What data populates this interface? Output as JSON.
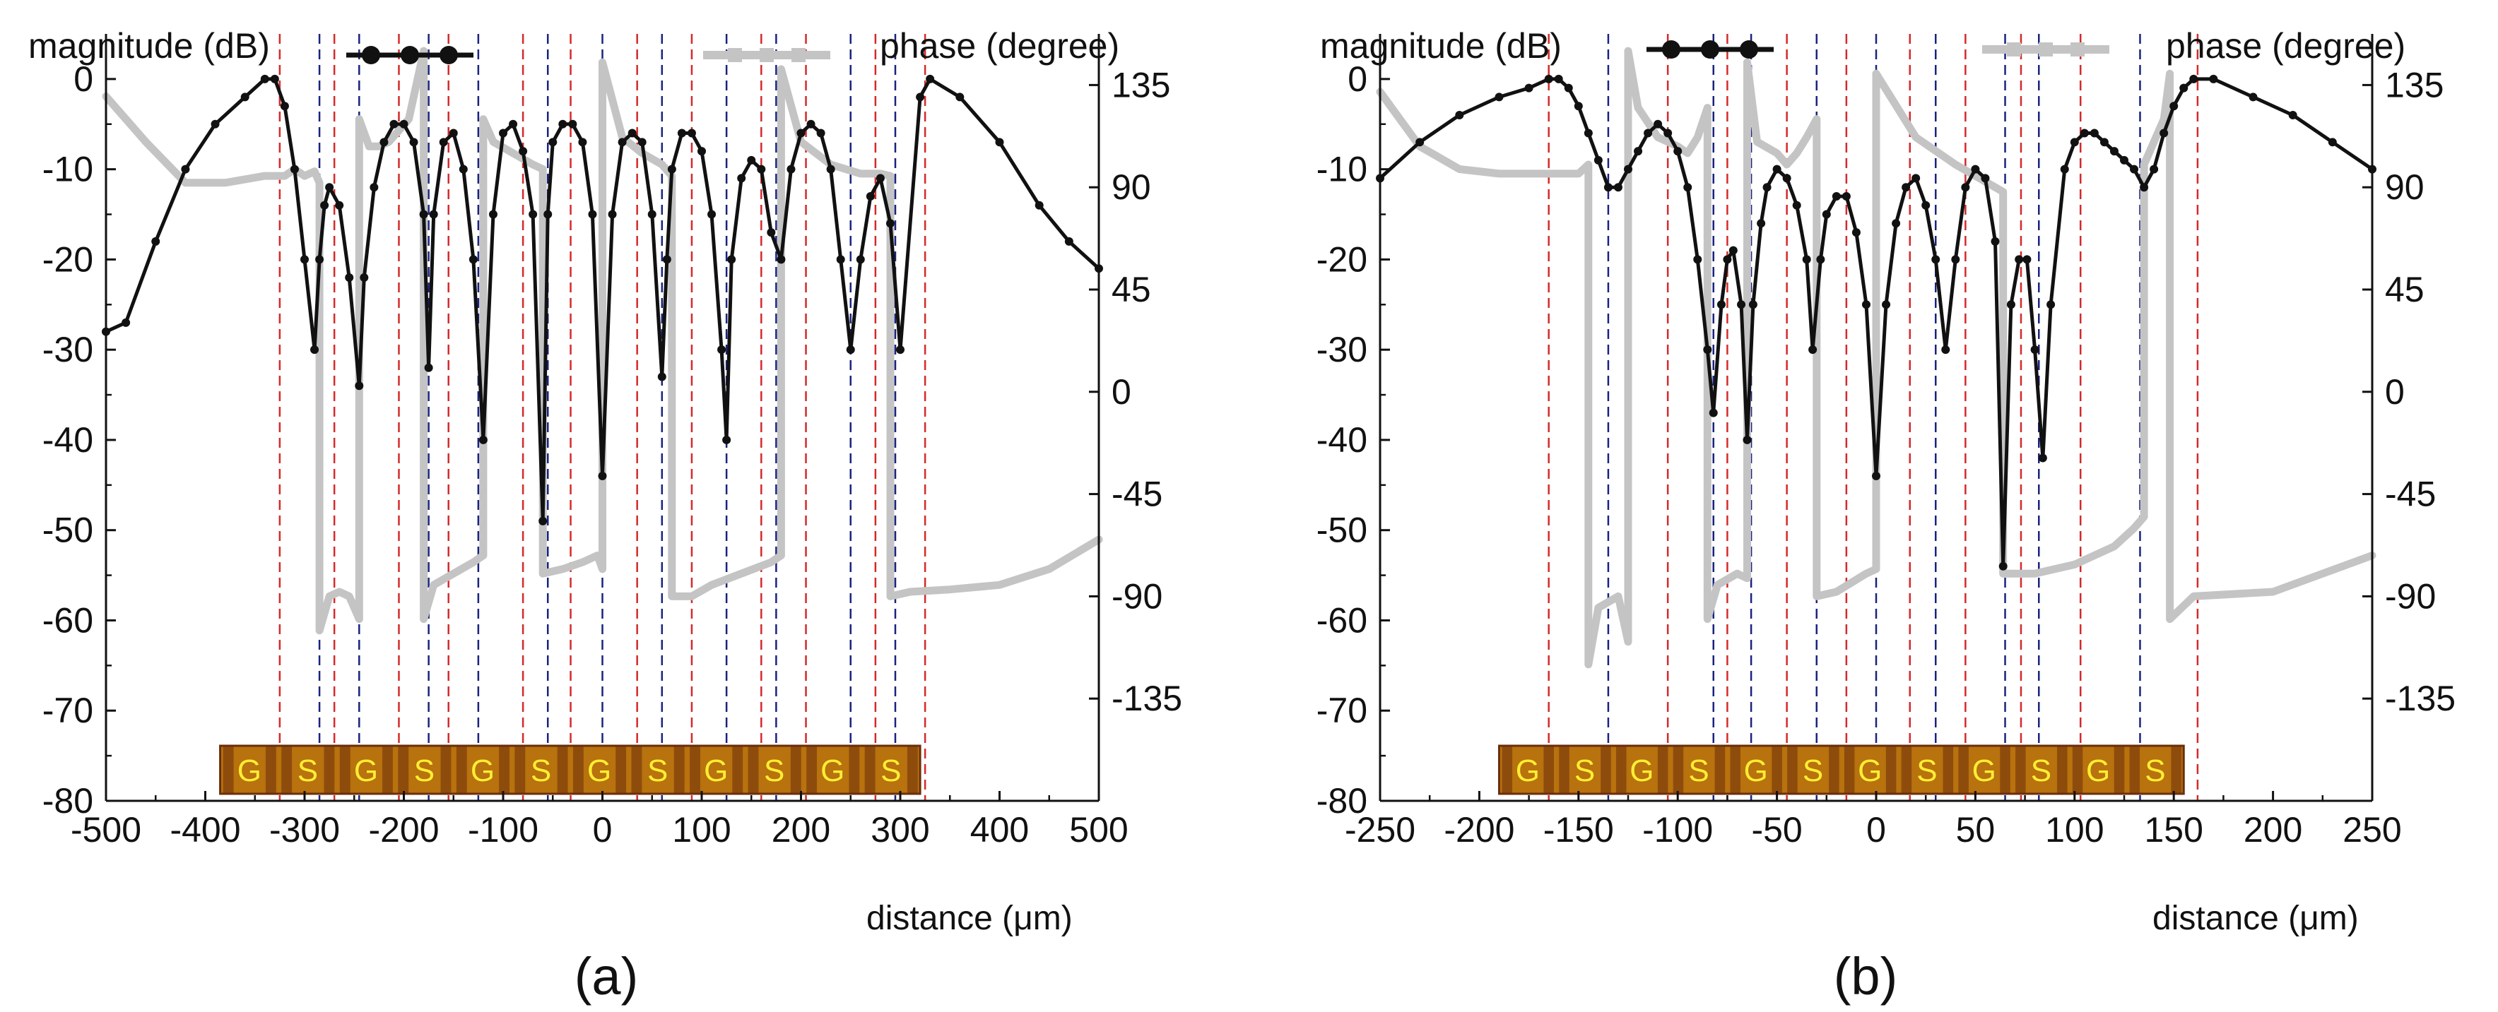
{
  "figure": {
    "background": "#ffffff"
  },
  "colors": {
    "magnitude": "#111111",
    "phase": "#c4c4c4",
    "red_line": "#d42a2a",
    "blue_line": "#1a237e",
    "electrode_base": "#b8720e",
    "electrode_dark": "#6b2e0b",
    "electrode_text": "#ffee33"
  },
  "chart_data": [
    {
      "type": "line",
      "panel_label": "(a)",
      "ylabel_left": "magnitude (dB)",
      "ylabel_right": "phase (degree)",
      "xlabel": "distance (μm)",
      "xlim": [
        -500,
        500
      ],
      "ylim_left": [
        -80,
        5
      ],
      "ylim_right": [
        -180,
        157.5
      ],
      "xticks": [
        -500,
        -400,
        -300,
        -200,
        -100,
        0,
        100,
        200,
        300,
        400,
        500
      ],
      "xtick_labels": [
        "-500",
        "-400",
        "-300",
        "-200",
        "-100",
        "0",
        "100",
        "200",
        "300",
        "400",
        "500"
      ],
      "yticks_left": [
        0,
        -10,
        -20,
        -30,
        -40,
        -50,
        -60,
        -70,
        -80
      ],
      "ytick_labels_left": [
        "0",
        "-10",
        "-20",
        "-30",
        "-40",
        "-50",
        "-60",
        "-70",
        "-80"
      ],
      "yticks_right": [
        135,
        90,
        45,
        0,
        -45,
        -90,
        -135
      ],
      "ytick_labels_right": [
        "135",
        "90",
        "45",
        "0",
        "-45",
        "-90",
        "-135"
      ],
      "legend": [
        {
          "label": "magnitude (dB)",
          "series": "magnitude"
        },
        {
          "label": "phase (degree)",
          "series": "phase"
        }
      ],
      "series": [
        {
          "name": "magnitude",
          "x": [
            -500,
            -480,
            -450,
            -420,
            -390,
            -360,
            -340,
            -330,
            -320,
            -310,
            -300,
            -290,
            -285,
            -280,
            -275,
            -265,
            -255,
            -245,
            -240,
            -230,
            -220,
            -210,
            -200,
            -190,
            -180,
            -175,
            -170,
            -160,
            -150,
            -140,
            -130,
            -120,
            -110,
            -100,
            -90,
            -80,
            -70,
            -60,
            -55,
            -50,
            -40,
            -30,
            -20,
            -10,
            0,
            10,
            20,
            30,
            40,
            50,
            60,
            65,
            70,
            80,
            90,
            100,
            110,
            120,
            125,
            130,
            140,
            150,
            160,
            170,
            180,
            190,
            200,
            210,
            220,
            230,
            240,
            250,
            260,
            270,
            280,
            290,
            300,
            320,
            330,
            360,
            400,
            440,
            470,
            500
          ],
          "y": [
            -28,
            -27,
            -18,
            -10,
            -5,
            -2,
            0,
            0,
            -3,
            -10,
            -20,
            -30,
            -20,
            -14,
            -12,
            -14,
            -22,
            -34,
            -22,
            -12,
            -7,
            -5,
            -5,
            -7,
            -15,
            -32,
            -15,
            -7,
            -6,
            -10,
            -20,
            -40,
            -15,
            -6,
            -5,
            -8,
            -15,
            -49,
            -15,
            -7,
            -5,
            -5,
            -7,
            -15,
            -44,
            -15,
            -7,
            -6,
            -7,
            -15,
            -33,
            -20,
            -10,
            -6,
            -6,
            -8,
            -15,
            -30,
            -40,
            -20,
            -11,
            -9,
            -10,
            -17,
            -20,
            -10,
            -6,
            -5,
            -6,
            -10,
            -20,
            -30,
            -20,
            -13,
            -11,
            -16,
            -30,
            -2,
            0,
            -2,
            -7,
            -14,
            -18,
            -21
          ]
        },
        {
          "name": "phase",
          "x": [
            -500,
            -460,
            -420,
            -380,
            -340,
            -320,
            -310,
            -300,
            -290,
            -285,
            -285,
            -275,
            -265,
            -255,
            -250,
            -245,
            -245,
            -235,
            -225,
            -215,
            -205,
            -195,
            -185,
            -180,
            -180,
            -170,
            -150,
            -130,
            -120,
            -120,
            -110,
            -90,
            -70,
            -60,
            -60,
            -40,
            -20,
            -5,
            0,
            0,
            20,
            40,
            60,
            70,
            70,
            90,
            110,
            140,
            170,
            180,
            180,
            200,
            230,
            260,
            280,
            290,
            290,
            310,
            350,
            400,
            450,
            500
          ],
          "y": [
            130,
            110,
            92,
            92,
            95,
            95,
            98,
            95,
            97,
            92,
            -105,
            -90,
            -88,
            -90,
            -95,
            -100,
            120,
            108,
            108,
            110,
            115,
            120,
            140,
            150,
            -100,
            -85,
            -80,
            -75,
            -72,
            120,
            110,
            105,
            100,
            98,
            -80,
            -78,
            -75,
            -72,
            -78,
            145,
            112,
            105,
            100,
            95,
            -90,
            -90,
            -85,
            -80,
            -75,
            -72,
            142,
            110,
            100,
            96,
            96,
            95,
            -90,
            -88,
            -87,
            -85,
            -78,
            -65
          ]
        }
      ],
      "red_lines_x": [
        -325,
        -270,
        -205,
        -155,
        -80,
        -32,
        35,
        90,
        160,
        205,
        275,
        325
      ],
      "blue_lines_x": [
        -285,
        -245,
        -175,
        -125,
        -55,
        0,
        60,
        125,
        175,
        250,
        295
      ],
      "electrode_labels": [
        "G",
        "S",
        "G",
        "S",
        "G",
        "S",
        "G",
        "S",
        "G",
        "S",
        "G",
        "S"
      ],
      "electrode_x_range": [
        -385,
        320
      ]
    },
    {
      "type": "line",
      "panel_label": "(b)",
      "ylabel_left": "magnitude (dB)",
      "ylabel_right": "phase (degree)",
      "xlabel": "distance (μm)",
      "xlim": [
        -250,
        250
      ],
      "ylim_left": [
        -80,
        5
      ],
      "ylim_right": [
        -180,
        157.5
      ],
      "xticks": [
        -250,
        -200,
        -150,
        -100,
        -50,
        0,
        50,
        100,
        150,
        200,
        250
      ],
      "xtick_labels": [
        "-250",
        "-200",
        "-150",
        "-100",
        "-50",
        "0",
        "50",
        "100",
        "150",
        "200",
        "250"
      ],
      "yticks_left": [
        0,
        -10,
        -20,
        -30,
        -40,
        -50,
        -60,
        -70,
        -80
      ],
      "ytick_labels_left": [
        "0",
        "-10",
        "-20",
        "-30",
        "-40",
        "-50",
        "-60",
        "-70",
        "-80"
      ],
      "yticks_right": [
        135,
        90,
        45,
        0,
        -45,
        -90,
        -135
      ],
      "ytick_labels_right": [
        "135",
        "90",
        "45",
        "0",
        "-45",
        "-90",
        "-135"
      ],
      "legend": [
        {
          "label": "magnitude (dB)",
          "series": "magnitude"
        },
        {
          "label": "phase (degree)",
          "series": "phase"
        }
      ],
      "series": [
        {
          "name": "magnitude",
          "x": [
            -250,
            -230,
            -210,
            -190,
            -175,
            -165,
            -160,
            -155,
            -150,
            -145,
            -140,
            -135,
            -130,
            -125,
            -120,
            -115,
            -110,
            -105,
            -100,
            -95,
            -90,
            -85,
            -82,
            -78,
            -75,
            -72,
            -68,
            -65,
            -62,
            -58,
            -55,
            -50,
            -45,
            -40,
            -35,
            -32,
            -28,
            -25,
            -20,
            -15,
            -10,
            -5,
            0,
            5,
            10,
            15,
            20,
            25,
            30,
            35,
            40,
            45,
            50,
            55,
            60,
            64,
            68,
            72,
            76,
            80,
            84,
            88,
            95,
            100,
            105,
            110,
            115,
            120,
            125,
            130,
            135,
            140,
            145,
            150,
            155,
            160,
            170,
            190,
            210,
            230,
            250
          ],
          "y": [
            -11,
            -7,
            -4,
            -2,
            -1,
            0,
            0,
            -1,
            -3,
            -6,
            -9,
            -12,
            -12,
            -10,
            -8,
            -6,
            -5,
            -6,
            -8,
            -12,
            -20,
            -30,
            -37,
            -25,
            -20,
            -19,
            -25,
            -40,
            -25,
            -16,
            -12,
            -10,
            -11,
            -14,
            -20,
            -30,
            -20,
            -15,
            -13,
            -13,
            -17,
            -25,
            -44,
            -25,
            -16,
            -12,
            -11,
            -14,
            -20,
            -30,
            -20,
            -12,
            -10,
            -11,
            -18,
            -54,
            -25,
            -20,
            -20,
            -30,
            -42,
            -25,
            -10,
            -7,
            -6,
            -6,
            -7,
            -8,
            -9,
            -10,
            -12,
            -10,
            -6,
            -3,
            -1,
            0,
            0,
            -2,
            -4,
            -7,
            -10
          ]
        },
        {
          "name": "phase",
          "x": [
            -250,
            -230,
            -210,
            -190,
            -170,
            -160,
            -150,
            -145,
            -145,
            -140,
            -130,
            -125,
            -125,
            -120,
            -110,
            -100,
            -95,
            -90,
            -85,
            -85,
            -80,
            -70,
            -65,
            -65,
            -60,
            -50,
            -45,
            -40,
            -35,
            -30,
            -30,
            -20,
            -5,
            0,
            0,
            20,
            40,
            60,
            64,
            64,
            80,
            100,
            110,
            120,
            130,
            135,
            135,
            145,
            148,
            148,
            160,
            200,
            250
          ],
          "y": [
            132,
            108,
            98,
            96,
            96,
            96,
            96,
            100,
            -120,
            -95,
            -90,
            -110,
            150,
            125,
            112,
            108,
            105,
            112,
            125,
            -100,
            -85,
            -80,
            -82,
            145,
            110,
            105,
            100,
            105,
            112,
            120,
            -90,
            -88,
            -80,
            -78,
            140,
            112,
            100,
            90,
            88,
            -80,
            -80,
            -76,
            -72,
            -68,
            -60,
            -55,
            100,
            120,
            140,
            -100,
            -90,
            -88,
            -72
          ]
        }
      ],
      "red_lines_x": [
        -165,
        -105,
        -75,
        -45,
        -15,
        17,
        45,
        73,
        103,
        162
      ],
      "blue_lines_x": [
        -135,
        -82,
        -63,
        -30,
        0,
        30,
        65,
        82,
        133
      ],
      "electrode_labels": [
        "G",
        "S",
        "G",
        "S",
        "G",
        "S",
        "G",
        "S",
        "G",
        "S",
        "G",
        "S"
      ],
      "electrode_x_range": [
        -190,
        155
      ]
    }
  ]
}
